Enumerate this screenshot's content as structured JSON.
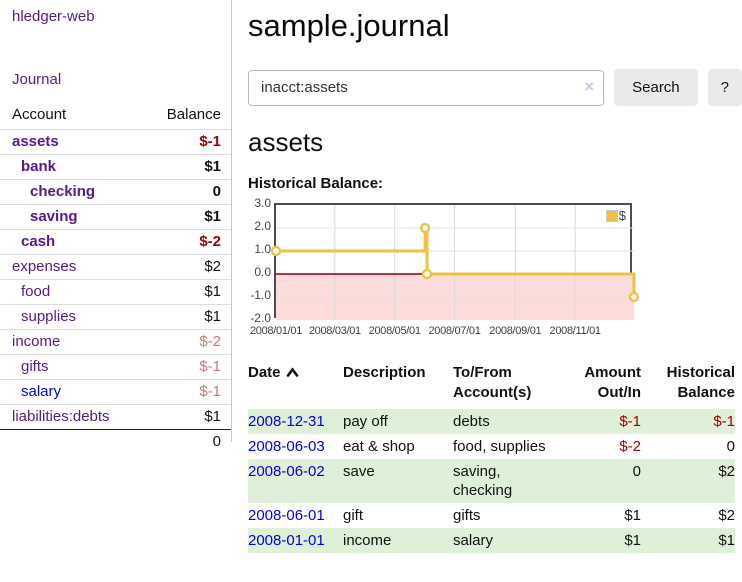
{
  "colors": {
    "link_purple": "#551a8b",
    "link_blue": "#0000ee",
    "negative_strong": "#a40000",
    "negative_soft": "#c47777",
    "stripe_green": "#dff0d8",
    "chart_line": "#edc240",
    "zero_line": "#8b0000",
    "negative_region": "#fcdbdb"
  },
  "sidebar": {
    "app_title": "hledger-web",
    "journal_label": "Journal",
    "accounts_header": {
      "account": "Account",
      "balance": "Balance"
    },
    "accounts": [
      {
        "account": "assets",
        "balance": "$-1",
        "level": 1,
        "in_query": true,
        "balance_style": "negative-strong",
        "link_style": "purple"
      },
      {
        "account": "bank",
        "balance": "$1",
        "level": 2,
        "in_query": true,
        "balance_style": "plain-strong",
        "link_style": "purple"
      },
      {
        "account": "checking",
        "balance": "0",
        "level": 3,
        "in_query": true,
        "balance_style": "plain-strong",
        "link_style": "purple"
      },
      {
        "account": "saving",
        "balance": "$1",
        "level": 3,
        "in_query": true,
        "balance_style": "plain-strong",
        "link_style": "purple"
      },
      {
        "account": "cash",
        "balance": "$-2",
        "level": 2,
        "in_query": true,
        "balance_style": "negative-strong",
        "link_style": "purple"
      },
      {
        "account": "expenses",
        "balance": "$2",
        "level": 1,
        "in_query": false,
        "balance_style": "plain",
        "link_style": "purple"
      },
      {
        "account": "food",
        "balance": "$1",
        "level": 2,
        "in_query": false,
        "balance_style": "plain",
        "link_style": "purple"
      },
      {
        "account": "supplies",
        "balance": "$1",
        "level": 2,
        "in_query": false,
        "balance_style": "plain",
        "link_style": "purple"
      },
      {
        "account": "income",
        "balance": "$-2",
        "level": 1,
        "in_query": false,
        "balance_style": "negative-soft",
        "link_style": "purple"
      },
      {
        "account": "gifts",
        "balance": "$-1",
        "level": 2,
        "in_query": false,
        "balance_style": "negative-soft",
        "link_style": "purple"
      },
      {
        "account": "salary",
        "balance": "$-1",
        "level": 2,
        "in_query": false,
        "balance_style": "negative-soft",
        "link_style": "blue"
      },
      {
        "account": "liabilities:debts",
        "balance": "$1",
        "level": 1,
        "in_query": false,
        "balance_style": "plain",
        "link_style": "purple"
      }
    ],
    "total": "0"
  },
  "header": {
    "title": "sample.journal"
  },
  "search": {
    "value": "inacct:assets",
    "clear_icon": "×",
    "button_label": "Search",
    "help_label": "?"
  },
  "account_page": {
    "heading": "assets",
    "chart_label": "Historical Balance:"
  },
  "chart_data": {
    "type": "line",
    "step": true,
    "title": "Historical Balance:",
    "series": [
      {
        "name": "$",
        "color": "#edc240",
        "points": [
          {
            "date": "2008-01-01",
            "value": 1.0
          },
          {
            "date": "2008-06-01",
            "value": 2.0
          },
          {
            "date": "2008-06-03",
            "value": 0.0
          },
          {
            "date": "2008-12-31",
            "value": -1.0
          }
        ]
      }
    ],
    "x_range": [
      "2008-01-01",
      "2008-12-31"
    ],
    "x_ticks": [
      "2008/01/01",
      "2008/03/01",
      "2008/05/01",
      "2008/07/01",
      "2008/09/01",
      "2008/11/01"
    ],
    "y_range": [
      -2.0,
      3.0
    ],
    "y_ticks": [
      3.0,
      2.0,
      1.0,
      0.0,
      -1.0,
      -2.0
    ],
    "grid": true,
    "legend": {
      "label": "$",
      "position": "top-right"
    },
    "markers": true
  },
  "register_table": {
    "headers": [
      {
        "label": "Date",
        "sorted": "ascending"
      },
      {
        "label": "Description"
      },
      {
        "label": "To/From Account(s)"
      },
      {
        "label": "Amount Out/In",
        "align": "right"
      },
      {
        "label": "Historical Balance",
        "align": "right"
      }
    ],
    "rows": [
      {
        "date": "2008-12-31",
        "description": "pay off",
        "accounts": "debts",
        "amount": "$-1",
        "amount_negative": true,
        "balance": "$-1",
        "balance_negative": true,
        "striped": true
      },
      {
        "date": "2008-06-03",
        "description": "eat & shop",
        "accounts": "food, supplies",
        "amount": "$-2",
        "amount_negative": true,
        "balance": "0",
        "balance_negative": false,
        "striped": false
      },
      {
        "date": "2008-06-02",
        "description": "save",
        "accounts": "saving,\nchecking",
        "amount": "0",
        "amount_negative": false,
        "balance": "$2",
        "balance_negative": false,
        "striped": true
      },
      {
        "date": "2008-06-01",
        "description": "gift",
        "accounts": "gifts",
        "amount": "$1",
        "amount_negative": false,
        "balance": "$2",
        "balance_negative": false,
        "striped": false
      },
      {
        "date": "2008-01-01",
        "description": "income",
        "accounts": "salary",
        "amount": "$1",
        "amount_negative": false,
        "balance": "$1",
        "balance_negative": false,
        "striped": true
      }
    ]
  }
}
